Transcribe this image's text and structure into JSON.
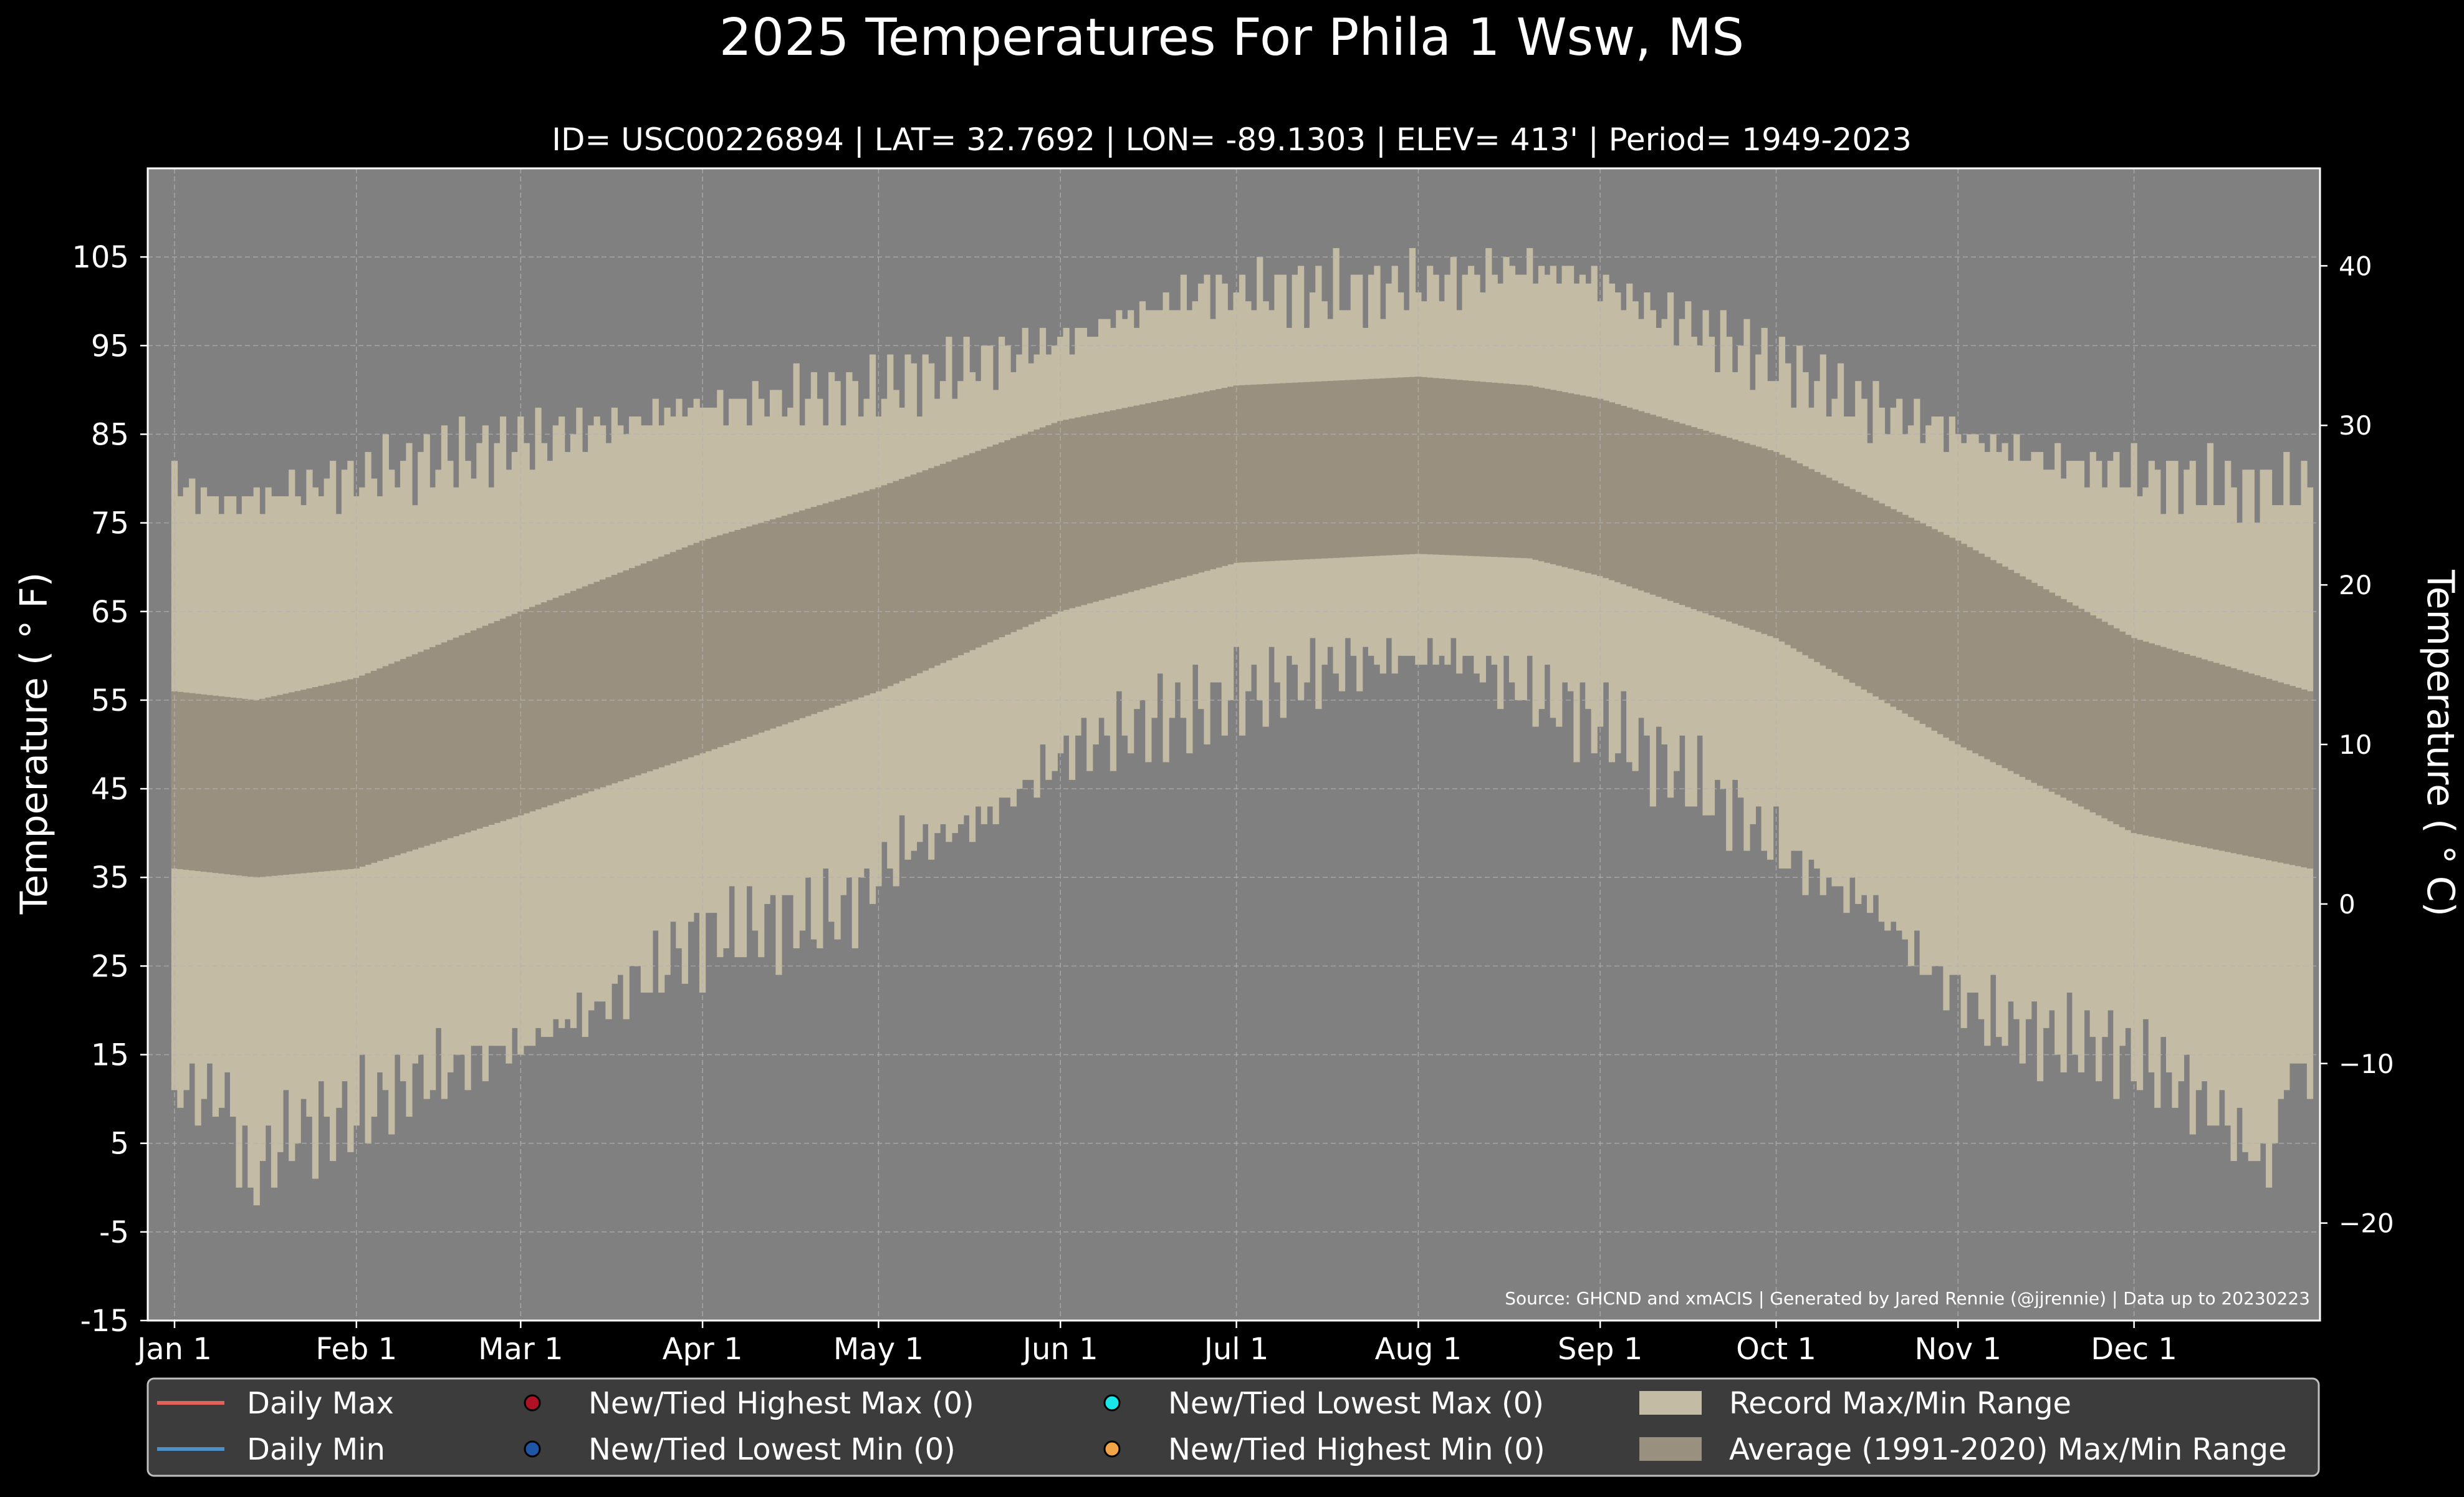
{
  "chart_data": {
    "type": "area",
    "title": "2025 Temperatures For Phila 1 Wsw, MS",
    "subtitle": "ID= USC00226894 | LAT= 32.7692 | LON= -89.1303 | ELEV= 413' | Period= 1949-2023",
    "ylabel": "Temperature ($^\\circ$F)",
    "ylabel_display": "Temperature ( ° F)",
    "y2label_display": "Temperature ( ° C)",
    "source": "Source: GHCND and xmACIS | Generated by Jared Rennie (@jjrennie) | Data up to 20230223",
    "ylim": [
      -15,
      115
    ],
    "y_ticks": [
      -15,
      -5,
      5,
      15,
      25,
      35,
      45,
      55,
      65,
      75,
      85,
      95,
      105
    ],
    "y2_ticks": [
      -20,
      -10,
      0,
      10,
      20,
      30,
      40
    ],
    "y2_tick_labels": [
      "−20",
      "−10",
      "0",
      "10",
      "20",
      "30",
      "40"
    ],
    "x_tick_labels": [
      "Jan 1",
      "Feb 1",
      "Mar 1",
      "Apr 1",
      "May 1",
      "Jun 1",
      "Jul 1",
      "Aug 1",
      "Sep 1",
      "Oct 1",
      "Nov 1",
      "Dec 1"
    ],
    "x_tick_days": [
      1,
      32,
      60,
      91,
      121,
      152,
      182,
      213,
      244,
      274,
      305,
      335
    ],
    "days_in_year": 365,
    "grid": true,
    "legend_position": "bottom",
    "record_max_anchors": {
      "day": [
        1,
        2,
        10,
        30,
        60,
        90,
        120,
        150,
        175,
        200,
        215,
        232,
        240,
        260,
        290,
        320,
        350,
        365
      ],
      "value": [
        82,
        79,
        77,
        80,
        84,
        88,
        90,
        95,
        101,
        101,
        102,
        104,
        103,
        97,
        88,
        82,
        79,
        79
      ]
    },
    "record_min_anchors": {
      "day": [
        1,
        10,
        14,
        20,
        30,
        45,
        60,
        75,
        90,
        105,
        115,
        125,
        140,
        155,
        170,
        185,
        200,
        210,
        220,
        235,
        245,
        255,
        268,
        278,
        290,
        300,
        310,
        320,
        330,
        340,
        350,
        355,
        358,
        362,
        365
      ],
      "value": [
        11,
        10,
        0,
        6,
        8,
        13,
        16,
        21,
        28,
        30,
        31,
        38,
        42,
        50,
        53,
        56,
        59,
        60,
        60,
        55,
        52,
        48,
        42,
        36,
        32,
        25,
        19,
        17,
        16,
        13,
        8,
        4,
        2,
        15,
        12
      ]
    },
    "series": [
      {
        "name": "Record Max/Min Range",
        "color": "#c4bba4"
      },
      {
        "name": "Average (1991-2020) Max/Min Range",
        "color": "#9a907f"
      }
    ],
    "normal_max": {
      "day": [
        1,
        15,
        32,
        60,
        91,
        121,
        152,
        182,
        213,
        232,
        244,
        274,
        305,
        335,
        365
      ],
      "value": [
        56,
        55,
        57.5,
        65,
        73,
        79,
        86.5,
        90.5,
        91.5,
        90.5,
        89,
        83,
        73,
        62,
        56
      ]
    },
    "normal_min": {
      "day": [
        1,
        15,
        32,
        60,
        91,
        121,
        152,
        182,
        213,
        232,
        244,
        274,
        305,
        335,
        365
      ],
      "value": [
        36,
        35,
        36,
        42,
        49,
        56,
        65,
        70.5,
        71.5,
        71,
        69,
        62,
        50,
        40,
        36
      ]
    }
  },
  "legend": {
    "items": [
      {
        "label": "Daily Max",
        "marker": "line",
        "color": "#e0625a"
      },
      {
        "label": "Daily Min",
        "marker": "line",
        "color": "#4d8fc7"
      },
      {
        "label": "New/Tied Highest Max (0)",
        "marker": "dot",
        "color": "#b01225"
      },
      {
        "label": "New/Tied Lowest Min (0)",
        "marker": "dot",
        "color": "#1f55a5"
      },
      {
        "label": "New/Tied Lowest Max (0)",
        "marker": "dot",
        "color": "#19e6e6"
      },
      {
        "label": "New/Tied Highest Min (0)",
        "marker": "dot",
        "color": "#f3a447"
      },
      {
        "label": "Record Max/Min Range",
        "marker": "patch",
        "color": "#c4bba4"
      },
      {
        "label": "Average (1991-2020) Max/Min Range",
        "marker": "patch",
        "color": "#9a907f"
      }
    ]
  },
  "colors": {
    "background": "#000000",
    "plot_bg": "#808080",
    "grid": "#b3b3b3",
    "legend_bg": "#3c3c3c"
  }
}
